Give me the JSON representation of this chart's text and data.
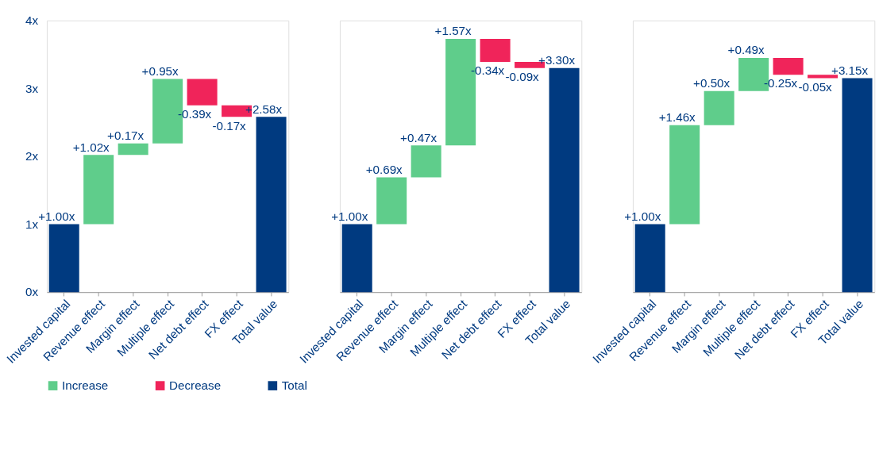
{
  "chart_data": [
    {
      "type": "bar",
      "categories": [
        "Invested capital",
        "Revenue effect",
        "Margin effect",
        "Multiple effect",
        "Net debt effect",
        "FX effect",
        "Total value"
      ],
      "series": [
        {
          "name": "Increase",
          "color": "#5fcd8b",
          "values": [
            null,
            1.02,
            0.17,
            0.95,
            null,
            null,
            null
          ],
          "base": [
            null,
            1,
            2.02,
            2.19,
            null,
            null,
            null
          ],
          "value_labels": [
            null,
            "+1.02x",
            "+0.17x",
            "+0.95x",
            null,
            null,
            null
          ]
        },
        {
          "name": "Decrease",
          "color": "#f0245a",
          "values": [
            null,
            null,
            null,
            null,
            -0.39,
            -0.17,
            null
          ],
          "base": [
            null,
            null,
            null,
            null,
            3.14,
            2.75,
            null
          ],
          "value_labels": [
            null,
            null,
            null,
            null,
            "-0.39x",
            "-0.17x",
            null
          ]
        },
        {
          "name": "Total",
          "color": "#003a80",
          "values": [
            1.0,
            null,
            null,
            null,
            null,
            null,
            2.58
          ],
          "base": [
            0,
            null,
            null,
            null,
            null,
            null,
            0
          ],
          "value_labels": [
            "+1.00x",
            null,
            null,
            null,
            null,
            null,
            "+2.58x"
          ]
        }
      ],
      "ylim": [
        0,
        4
      ],
      "yticks": [
        {
          "value": 0,
          "label": "0x"
        },
        {
          "value": 1,
          "label": "1x"
        },
        {
          "value": 2,
          "label": "2x"
        },
        {
          "value": 3,
          "label": "3x"
        },
        {
          "value": 4,
          "label": "4x"
        }
      ],
      "grid": false,
      "legend": "bottom"
    },
    {
      "type": "bar",
      "categories": [
        "Invested capital",
        "Revenue effect",
        "Margin effect",
        "Multiple effect",
        "Net debt effect",
        "FX effect",
        "Total value"
      ],
      "series": [
        {
          "color": "#5fcd8b",
          "values": [
            null,
            0.69,
            0.47,
            1.57,
            null,
            null,
            null
          ],
          "base": [
            null,
            1,
            1.69,
            2.16,
            null,
            null,
            null
          ],
          "value_labels": [
            null,
            "+0.69x",
            "+0.47x",
            "+1.57x",
            null,
            null,
            null
          ]
        },
        {
          "color": "#f0245a",
          "values": [
            null,
            null,
            null,
            null,
            -0.34,
            -0.09,
            null
          ],
          "base": [
            null,
            null,
            null,
            null,
            3.73,
            3.39,
            null
          ],
          "value_labels": [
            null,
            null,
            null,
            null,
            "-0.34x",
            "-0.09x",
            null
          ]
        },
        {
          "color": "#003a80",
          "values": [
            1.0,
            null,
            null,
            null,
            null,
            null,
            3.3
          ],
          "base": [
            0,
            null,
            null,
            null,
            null,
            null,
            0
          ],
          "value_labels": [
            "+1.00x",
            null,
            null,
            null,
            null,
            null,
            "+3.30x"
          ]
        }
      ],
      "ylim": [
        0,
        4
      ],
      "tick_labels": "x",
      "grid": false
    },
    {
      "type": "bar",
      "categories": [
        "Invested capital",
        "Revenue effect",
        "Margin effect",
        "Multiple effect",
        "Net debt effect",
        "FX effect",
        "Total value"
      ],
      "series": [
        {
          "color": "#5fcd8b",
          "values": [
            null,
            1.46,
            0.5,
            0.49,
            null,
            null,
            null
          ],
          "base": [
            null,
            1,
            2.46,
            2.96,
            null,
            null,
            null
          ],
          "value_labels": [
            null,
            "+1.46x",
            "+0.50x",
            "+0.49x",
            null,
            null,
            null
          ]
        },
        {
          "color": "#f0245a",
          "values": [
            null,
            null,
            null,
            null,
            -0.25,
            -0.05,
            null
          ],
          "base": [
            null,
            null,
            null,
            null,
            3.45,
            3.2,
            null
          ],
          "value_labels": [
            null,
            null,
            null,
            null,
            "-0.25x",
            "-0.05x",
            null
          ]
        },
        {
          "color": "#003a80",
          "values": [
            1.0,
            null,
            null,
            null,
            null,
            null,
            3.15
          ],
          "base": [
            0,
            null,
            null,
            null,
            null,
            null,
            0
          ],
          "value_labels": [
            "+1.00x",
            null,
            null,
            null,
            null,
            null,
            "+3.15x"
          ]
        }
      ],
      "ylim": [
        0,
        4
      ],
      "tick_labels": "x",
      "grid": false
    }
  ]
}
